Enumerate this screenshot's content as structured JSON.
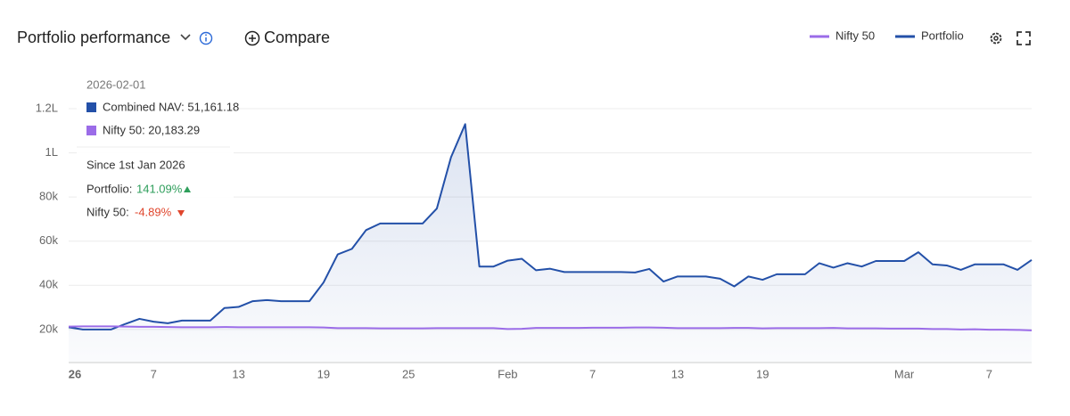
{
  "header": {
    "title": "Portfolio performance",
    "compare": "Compare"
  },
  "tooltip": {
    "date": "2026-02-01",
    "rows": [
      "Combined NAV: 51,161.18",
      "Nifty 50: 20,183.29"
    ],
    "since": "Since 1st Jan 2026",
    "changes": [
      {
        "label": "Portfolio:",
        "value": "141.09%"
      },
      {
        "label": "Nifty 50:",
        "value": "-4.89%"
      }
    ]
  },
  "chart_data": {
    "type": "line",
    "area": true,
    "categories": [
      "26",
      null,
      null,
      null,
      null,
      null,
      "7",
      null,
      null,
      null,
      null,
      null,
      "13",
      null,
      null,
      null,
      null,
      null,
      "19",
      null,
      null,
      null,
      null,
      null,
      "25",
      null,
      null,
      null,
      null,
      null,
      null,
      "Feb",
      null,
      null,
      null,
      null,
      null,
      "7",
      null,
      null,
      null,
      null,
      null,
      "13",
      null,
      null,
      null,
      null,
      null,
      "19",
      null,
      null,
      null,
      null,
      null,
      null,
      null,
      null,
      null,
      "Mar",
      null,
      null,
      null,
      null,
      null,
      "7",
      null,
      null,
      null
    ],
    "series": [
      {
        "name": "Nifty 50",
        "color": "#9b6ce8",
        "values": [
          21300,
          21400,
          21400,
          21400,
          21300,
          21200,
          21200,
          21100,
          21000,
          21000,
          21000,
          21100,
          21000,
          21000,
          21000,
          21000,
          21000,
          21000,
          20900,
          20600,
          20600,
          20600,
          20500,
          20500,
          20500,
          20500,
          20600,
          20600,
          20600,
          20600,
          20600,
          20183.29,
          20300,
          20700,
          20700,
          20700,
          20700,
          20800,
          20800,
          20800,
          20900,
          20900,
          20800,
          20600,
          20600,
          20600,
          20600,
          20700,
          20700,
          20500,
          20600,
          20600,
          20600,
          20600,
          20700,
          20500,
          20500,
          20500,
          20400,
          20400,
          20400,
          20200,
          20200,
          20000,
          20100,
          19900,
          19900,
          19800,
          19600
        ]
      },
      {
        "name": "Portfolio",
        "color": "#2350a8",
        "values": [
          21000,
          20000,
          20000,
          20000,
          22500,
          24800,
          23500,
          22800,
          24000,
          24000,
          24000,
          29700,
          30200,
          32800,
          33300,
          32800,
          32800,
          32800,
          41300,
          54000,
          56500,
          65000,
          68000,
          68000,
          68000,
          68000,
          74800,
          98000,
          113000,
          48500,
          48500,
          51161.18,
          52000,
          46800,
          47500,
          46000,
          46000,
          46000,
          46000,
          46000,
          45800,
          47400,
          41700,
          44000,
          44000,
          44000,
          43000,
          39500,
          44000,
          42500,
          45000,
          45000,
          45000,
          50000,
          48000,
          50000,
          48500,
          51000,
          51000,
          51000,
          55000,
          49500,
          49000,
          47000,
          49500,
          49500,
          49500,
          47000,
          51500
        ]
      }
    ],
    "ylim": [
      5000,
      120000
    ],
    "yticks": [
      {
        "value": 20000,
        "label": "20k"
      },
      {
        "value": 40000,
        "label": "40k"
      },
      {
        "value": 60000,
        "label": "60k"
      },
      {
        "value": 80000,
        "label": "80k"
      },
      {
        "value": 100000,
        "label": "1L"
      },
      {
        "value": 120000,
        "label": "1.2L"
      }
    ],
    "grid": true
  }
}
